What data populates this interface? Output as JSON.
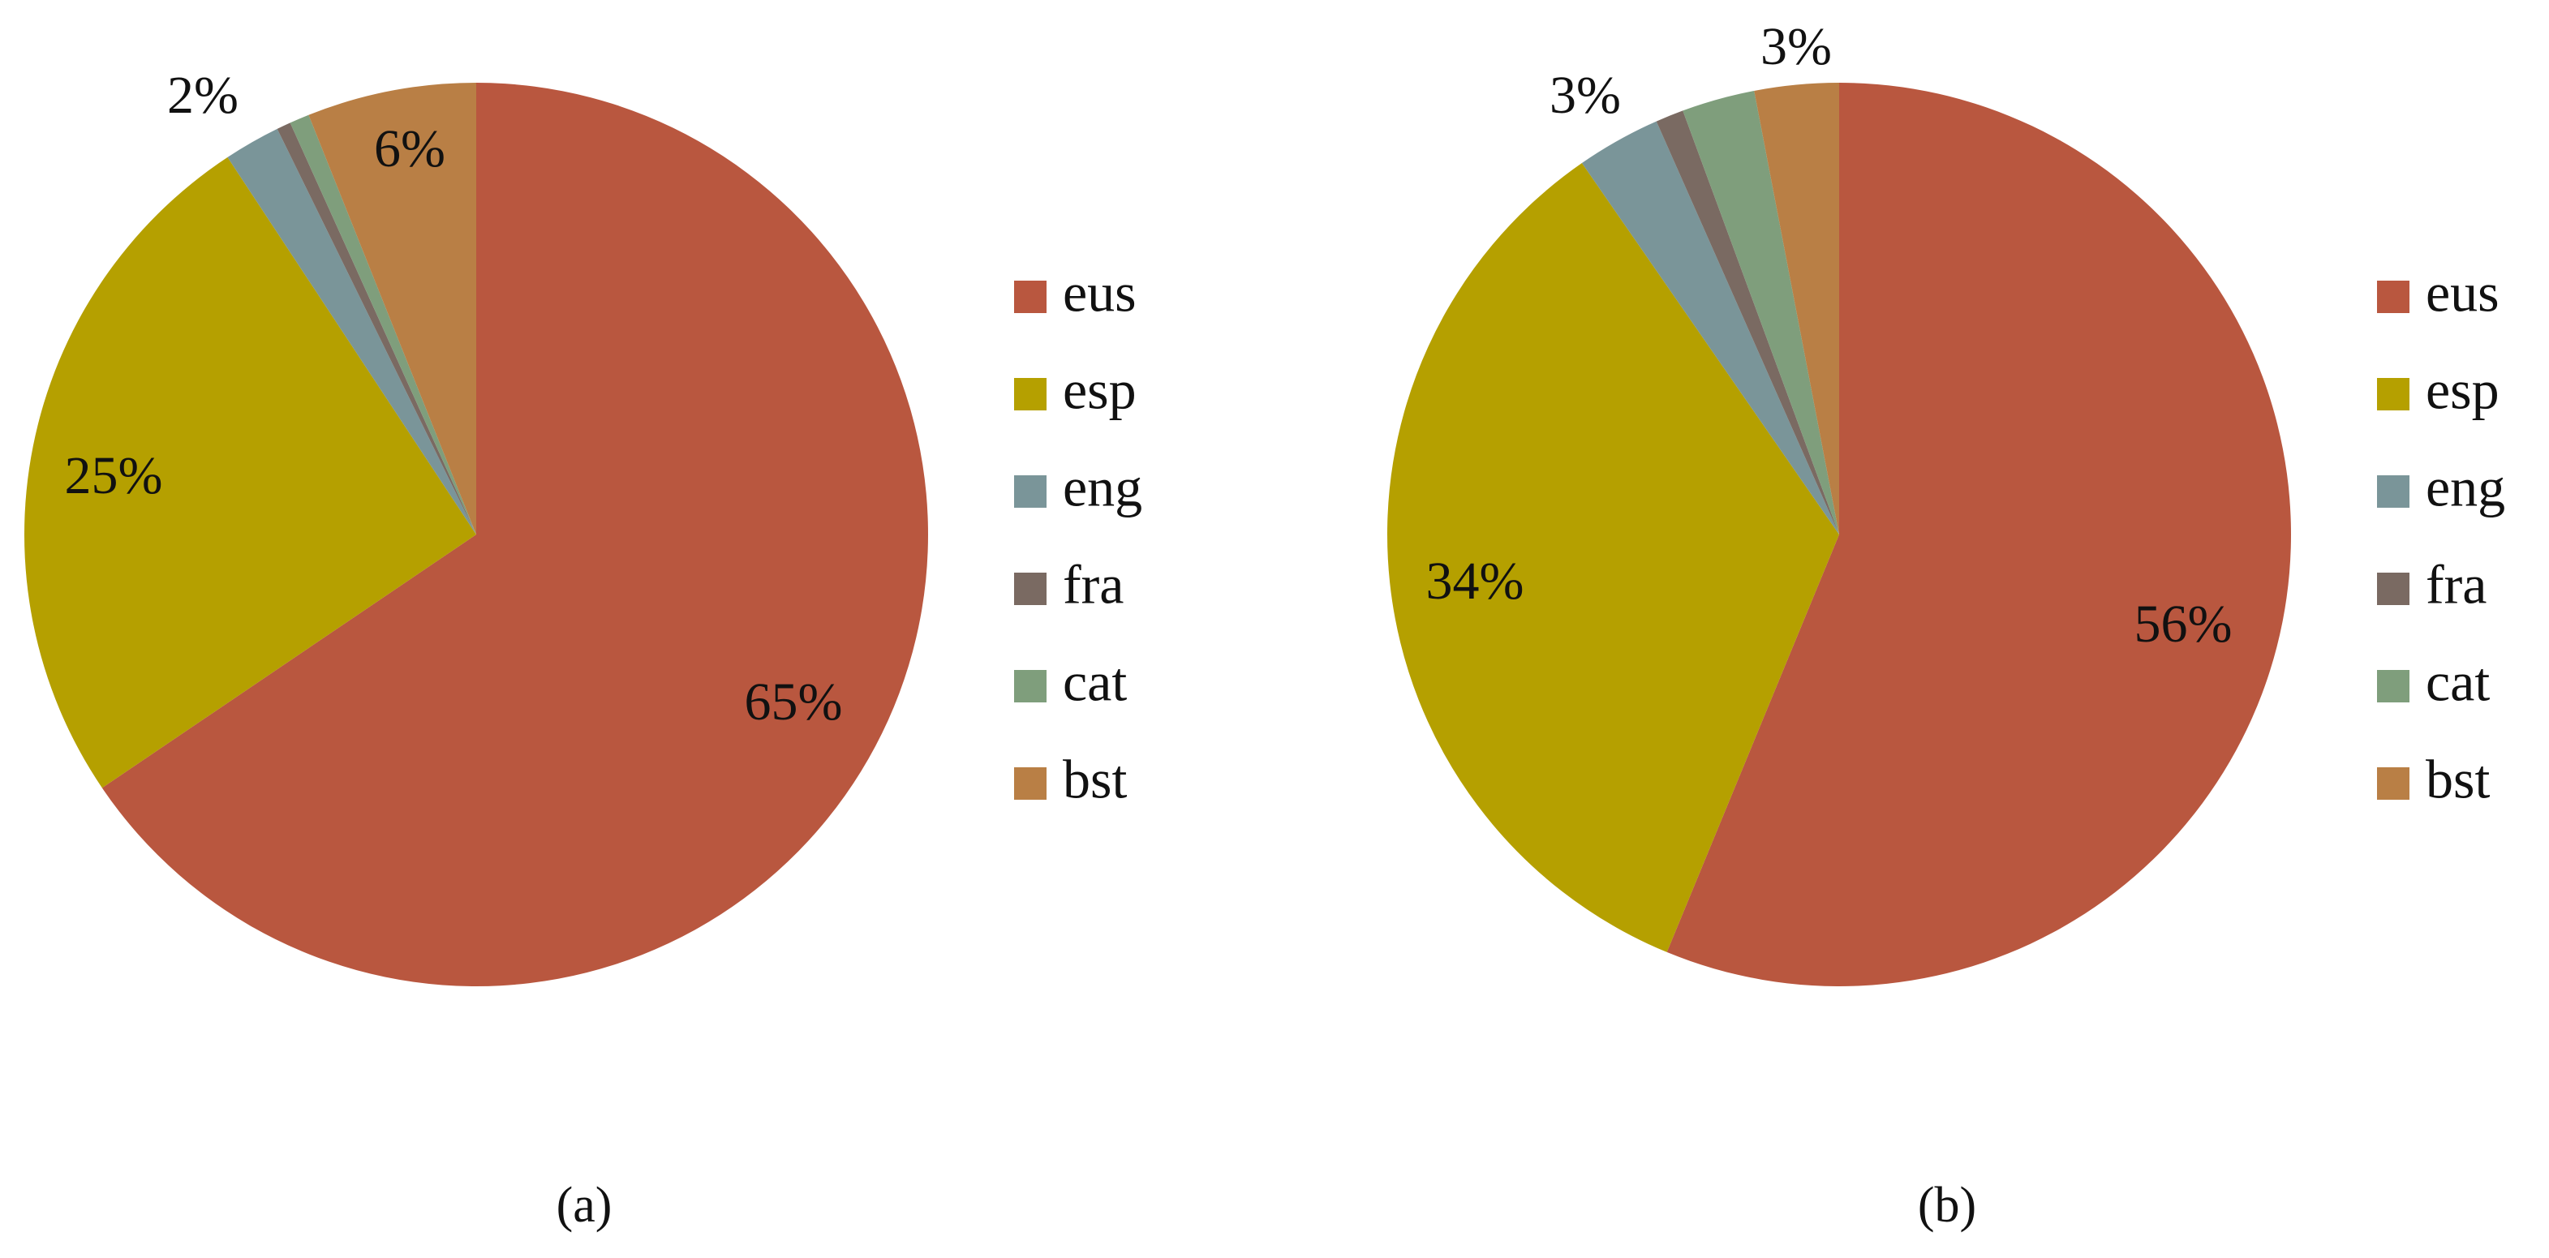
{
  "chart_data": [
    {
      "type": "pie",
      "categories": [
        "eus",
        "esp",
        "eng",
        "fra",
        "cat",
        "bst"
      ],
      "values": [
        65,
        25,
        2,
        0.5,
        0.7,
        6
      ],
      "value_labels": [
        "65%",
        "25%",
        "2%",
        null,
        null,
        "6%"
      ],
      "colors": [
        "#b9573f",
        "#b5a000",
        "#7a9599",
        "#7a6a62",
        "#7f9e7c",
        "#b97f45"
      ],
      "caption": "(a)"
    },
    {
      "type": "pie",
      "categories": [
        "eus",
        "esp",
        "eng",
        "fra",
        "cat",
        "bst"
      ],
      "values": [
        56,
        34,
        3,
        1,
        2.6,
        3
      ],
      "value_labels": [
        "56%",
        "34%",
        "3%",
        null,
        null,
        "3%"
      ],
      "colors": [
        "#b9573f",
        "#b5a000",
        "#7a9599",
        "#7a6a62",
        "#7f9e7c",
        "#b97f45"
      ],
      "caption": "(b)"
    }
  ]
}
